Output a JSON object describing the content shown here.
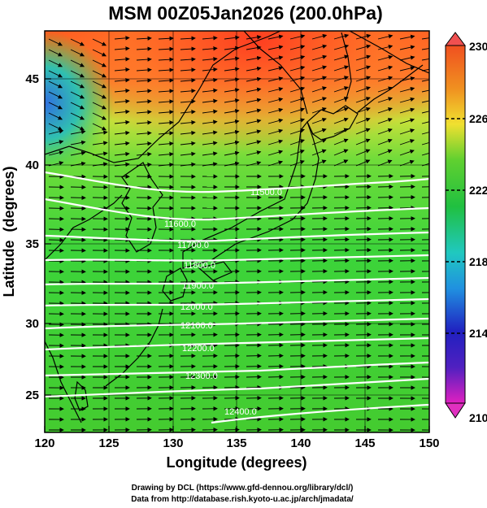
{
  "title": "MSM 00Z05Jan2026 (200.0hPa)",
  "x_label": "Longitude (degrees)",
  "y_label": "Latitude  (degrees)",
  "x_ticks": [
    "120",
    "125",
    "130",
    "135",
    "140",
    "145",
    "150"
  ],
  "y_ticks": [
    "25",
    "30",
    "35",
    "40",
    "45"
  ],
  "colorbar_ticks": [
    "210",
    "214",
    "218",
    "222",
    "226",
    "230"
  ],
  "credit_line_1": "Drawing by DCL (https://www.gfd-dennou.org/library/dcl/)",
  "credit_line_2": "Data from http://database.rish.kyoto-u.ac.jp/arch/jmadata/",
  "contour_labels": [
    "11500.0",
    "11600.0",
    "11700.0",
    "11800.0",
    "11900.0",
    "12000.0",
    "12100.0",
    "12200.0",
    "12300.0",
    "12400.0"
  ],
  "colors": {
    "background": "#ffffff",
    "contour_line": "#ffffff",
    "coastline": "#000000",
    "wind_vector": "#000000",
    "colormap": [
      "#e020c0",
      "#2020c0",
      "#2090e0",
      "#20c0c0",
      "#20c040",
      "#30d030",
      "#a8e030",
      "#f0e030",
      "#f09020",
      "#f05020"
    ]
  }
}
